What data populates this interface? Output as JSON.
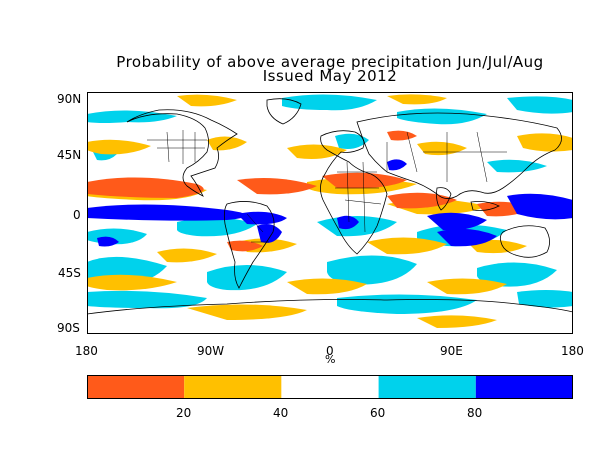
{
  "title": {
    "line1": "Probability of above average precipitation Jun/Jul/Aug",
    "line2": "Issued May 2012"
  },
  "axes": {
    "y_ticks": [
      "90N",
      "45N",
      "0",
      "45S",
      "90S"
    ],
    "x_ticks": [
      "180",
      "90W",
      "0",
      "90E",
      "180"
    ],
    "x_unit": "%"
  },
  "legend": {
    "bins": [
      {
        "color": "#ff5a1a",
        "from": 0,
        "to": 20
      },
      {
        "color": "#ffc000",
        "from": 20,
        "to": 40
      },
      {
        "color": "#ffffff",
        "from": 40,
        "to": 60
      },
      {
        "color": "#00d2ec",
        "from": 60,
        "to": 80
      },
      {
        "color": "#0000ff",
        "from": 80,
        "to": 100
      }
    ],
    "tick_labels": [
      "20",
      "40",
      "60",
      "80"
    ]
  },
  "colors": {
    "very_low": "#ff5a1a",
    "low": "#ffc000",
    "neutral": "#ffffff",
    "high": "#00d2ec",
    "very_high": "#0000ff",
    "coastline": "#000000"
  }
}
